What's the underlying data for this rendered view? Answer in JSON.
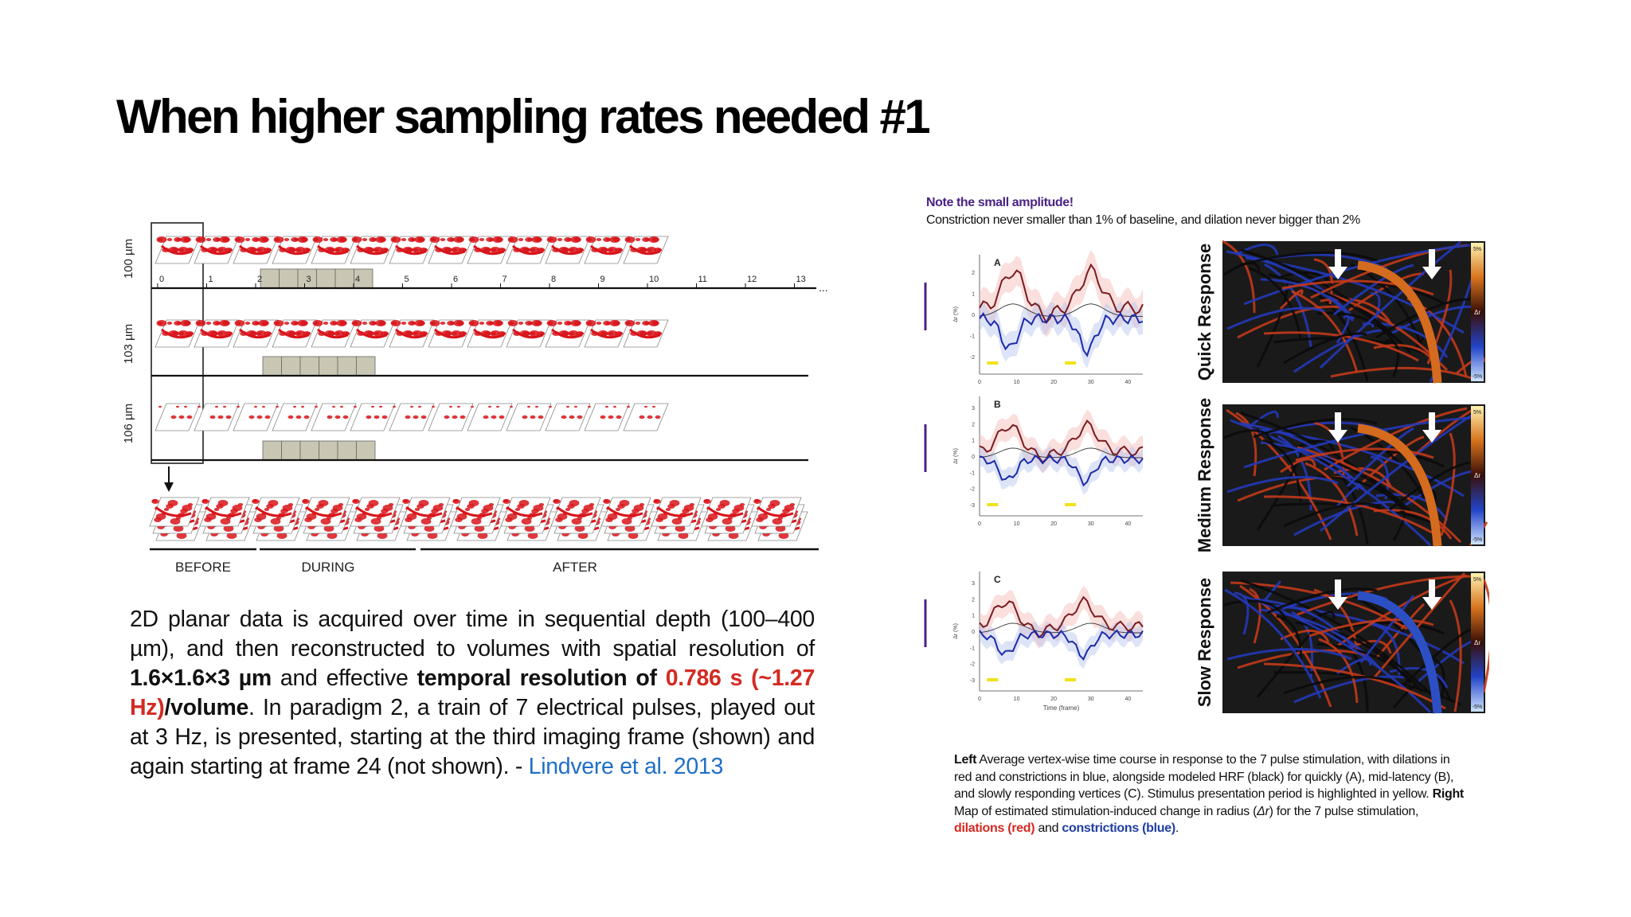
{
  "slide": {
    "title": "When higher sampling rates needed #1"
  },
  "left_figure": {
    "depth_labels": [
      "100 µm",
      "103 µm",
      "106 µm"
    ],
    "frame_numbers": [
      "0",
      "1",
      "2",
      "3",
      "4",
      "5",
      "6",
      "7",
      "8",
      "9",
      "10",
      "11",
      "12",
      "13"
    ],
    "ellipsis": "...",
    "phase_labels": {
      "before": "BEFORE",
      "during": "DURING",
      "after": "AFTER"
    }
  },
  "description": {
    "t1": "2D planar data is acquired over time in sequential depth (100–400 µm), and then reconstructed to volumes with spatial resolution of ",
    "t2": "1.6×1.6×3 µm",
    "t3": " and effective ",
    "t4": "temporal resolution of ",
    "t5": "0.786 s (~1.27 Hz)",
    "t6": "/volume",
    "t7": ". In paradigm 2, a train of 7 electrical pulses, played out at 3 Hz, is presented, starting at the third imaging frame (shown) and again starting at frame 24 (not shown). - ",
    "link": "Lindvere et al. 2013"
  },
  "right_figure": {
    "note_title": "Note the small amplitude!",
    "note_sub": "Constriction never smaller than 1% of baseline, and dilation never bigger than 2%",
    "panels": [
      {
        "letter": "A",
        "yticks": [
          "2",
          "1",
          "0",
          "-1",
          "-2"
        ],
        "response": "Quick Response"
      },
      {
        "letter": "B",
        "yticks": [
          "3",
          "2",
          "1",
          "0",
          "-1",
          "-2",
          "-3"
        ],
        "response": "Medium Response"
      },
      {
        "letter": "C",
        "yticks": [
          "3",
          "2",
          "1",
          "0",
          "-1",
          "-2",
          "-3"
        ],
        "response": "Slow Response"
      }
    ],
    "y_axis_label": "Δr (%)",
    "x_ticks": [
      "0",
      "10",
      "20",
      "30",
      "40"
    ],
    "x_axis_label": "Time (frame)",
    "colorbar": {
      "top": "5%",
      "mid": "Δr",
      "bottom": "-5%"
    },
    "colors": {
      "dilation": "#7a1c1f",
      "constriction": "#1e2aa8",
      "hrf": "#333333",
      "stimulus": "#f1e21a"
    }
  },
  "caption": {
    "left_b": "Left",
    "left_t": " Average vertex-wise time course in response to the 7 pulse stimulation, with dilations in red and constrictions in blue, alongside modeled HRF (black) for quickly (A), mid-latency (B), and slowly responding vertices (C). Stimulus presentation period is highlighted in yellow. ",
    "right_b": "Right",
    "right_t": " Map of estimated stimulation-induced change in radius (",
    "delta_r": "Δr",
    "t2": ") for the 7 pulse stimulation, ",
    "dil": "dilations (red)",
    "and": " and ",
    "con": "constrictions (blue)",
    "end": "."
  }
}
